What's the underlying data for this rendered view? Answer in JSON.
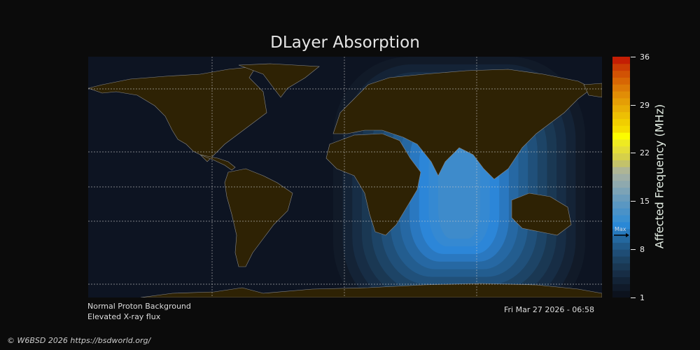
{
  "title": "DLayer Absorption",
  "colorbar": {
    "label": "Affected Frequency (MHz)",
    "ticks": [
      "36",
      "29",
      "22",
      "15",
      "8",
      "1"
    ],
    "min": 1,
    "max": 36,
    "max_marker_label": "Max",
    "max_marker_value": 10,
    "colors": [
      "#0c121d",
      "#101a29",
      "#132336",
      "#172d45",
      "#1a3853",
      "#1c4262",
      "#1f4d75",
      "#215a89",
      "#24689f",
      "#2779bc",
      "#2a88d6",
      "#3a8fd0",
      "#4a92c8",
      "#5a97c2",
      "#6a9cbc",
      "#7ca3b6",
      "#8ea9ae",
      "#9eaea6",
      "#aeb595",
      "#c3c26a",
      "#d6d04a",
      "#e4dd38",
      "#eeea22",
      "#fcfc00",
      "#f5dc00",
      "#f1ce00",
      "#edbf04",
      "#e9ae06",
      "#e59e06",
      "#e18d06",
      "#dc7a06",
      "#d76604",
      "#d15204",
      "#cb3c04",
      "#c41e04"
    ]
  },
  "notes": {
    "proton": "Normal Proton Background",
    "xray": "Elevated X-ray flux",
    "timestamp": "Fri Mar 27 2026 - 06:58"
  },
  "footer": {
    "copyright": "© W6BSD 2026 https://bsdworld.org/"
  },
  "map": {
    "ocean_color": "#0d1422",
    "land_color": "#2e2204",
    "coast_color": "#8a8a8a",
    "absorption_center_colors": [
      "#111a28",
      "#142336",
      "#172d45",
      "#1a3853",
      "#1d4466",
      "#20507a",
      "#235d8f",
      "#2668a3",
      "#2a78c0",
      "#2c86d8",
      "#3589d2",
      "#3e8bcb"
    ]
  }
}
